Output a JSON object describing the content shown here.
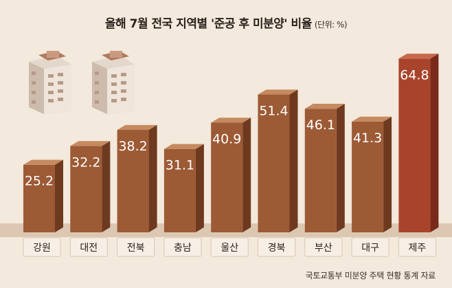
{
  "chart_data": {
    "type": "bar",
    "title": "올해 7월 전국 지역별 '준공 후 미분양' 비율",
    "unit_label": "(단위: %)",
    "categories": [
      "강원",
      "대전",
      "전북",
      "충남",
      "울산",
      "경북",
      "부산",
      "대구",
      "제주"
    ],
    "values": [
      25.2,
      32.2,
      38.2,
      31.1,
      40.9,
      51.4,
      46.1,
      41.3,
      64.8
    ],
    "value_labels": [
      "25.2",
      "32.2",
      "38.2",
      "31.1",
      "40.9",
      "51.4",
      "46.1",
      "41.3",
      "64.8"
    ],
    "highlight_index": 8,
    "colors": {
      "bar_front": "#9c5a35",
      "bar_side": "#6e3a1f",
      "bar_top": "#c58a60",
      "highlight_front": "#a8442c",
      "highlight_side": "#7a2a1a",
      "highlight_top": "#c96a4d",
      "background": "#f3e9dc",
      "floor": "#d8c3ad"
    },
    "xlabel": "",
    "ylabel": "",
    "ylim": [
      0,
      70
    ],
    "grid": false,
    "legend": "none"
  },
  "source": "국토교통부 미분양 주택 현황 통계 자료"
}
